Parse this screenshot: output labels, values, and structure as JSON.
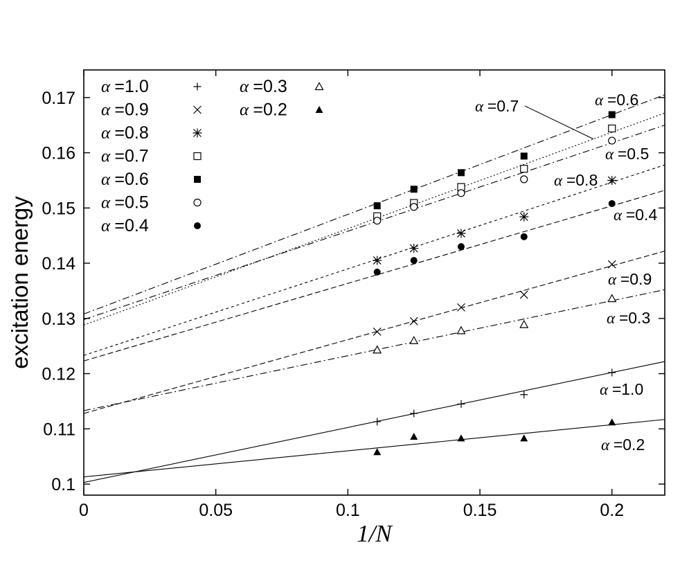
{
  "chart_data": {
    "type": "scatter",
    "xlabel": "1/N",
    "ylabel": "excitation energy",
    "xlim": [
      0,
      0.22
    ],
    "ylim": [
      0.098,
      0.175
    ],
    "x_ticks": [
      0,
      0.05,
      0.1,
      0.15,
      0.2
    ],
    "x_tick_labels": [
      "0",
      "0.05",
      "0.1",
      "0.15",
      "0.2"
    ],
    "y_ticks": [
      0.1,
      0.11,
      0.12,
      0.13,
      0.14,
      0.15,
      0.16,
      0.17
    ],
    "y_tick_labels": [
      "0.1",
      "0.11",
      "0.12",
      "0.13",
      "0.14",
      "0.15",
      "0.16",
      "0.17"
    ],
    "grid": false,
    "legend_position": "top-left",
    "x": [
      0.1111,
      0.125,
      0.1429,
      0.1667,
      0.2
    ],
    "series": [
      {
        "name": "α =1.0",
        "marker": "plus",
        "values": [
          0.1113,
          0.1128,
          0.1145,
          0.1162,
          0.1202
        ],
        "fit": [
          0.1003,
          0.1222
        ],
        "line_style": "solid",
        "label": "α =1.0"
      },
      {
        "name": "α =0.9",
        "marker": "cross",
        "values": [
          0.1276,
          0.1295,
          0.132,
          0.1343,
          0.1398
        ],
        "fit": [
          0.1128,
          0.1422
        ],
        "line_style": "dashed",
        "label": "α =0.9"
      },
      {
        "name": "α =0.8",
        "marker": "asterisk",
        "values": [
          0.1405,
          0.1427,
          0.1454,
          0.1484,
          0.155
        ],
        "fit": [
          0.1233,
          0.1578
        ],
        "line_style": "short-dashed",
        "label": "α =0.8"
      },
      {
        "name": "α =0.7",
        "marker": "open-square",
        "values": [
          0.1485,
          0.1509,
          0.1538,
          0.1571,
          0.1644
        ],
        "fit": [
          0.1288,
          0.1672
        ],
        "line_style": "dotted",
        "label": "α =0.7"
      },
      {
        "name": "α =0.6",
        "marker": "filled-square",
        "values": [
          0.1504,
          0.1534,
          0.1564,
          0.1594,
          0.1669
        ],
        "fit": [
          0.1308,
          0.1705
        ],
        "line_style": "dash-dot",
        "label": "α =0.6"
      },
      {
        "name": "α =0.5",
        "marker": "open-circle",
        "values": [
          0.1477,
          0.1502,
          0.1527,
          0.1552,
          0.1622
        ],
        "fit": [
          0.1298,
          0.165
        ],
        "line_style": "dash-dot",
        "label": "α =0.5"
      },
      {
        "name": "α =0.4",
        "marker": "filled-circle",
        "values": [
          0.1384,
          0.1405,
          0.143,
          0.1448,
          0.1508
        ],
        "fit": [
          0.1223,
          0.1532
        ],
        "line_style": "dashed",
        "label": "α =0.4"
      },
      {
        "name": "α =0.3",
        "marker": "open-triangle",
        "values": [
          0.1243,
          0.126,
          0.1278,
          0.1289,
          0.1336
        ],
        "fit": [
          0.1133,
          0.1352
        ],
        "line_style": "dash-dot",
        "label": "α =0.3"
      },
      {
        "name": "α =0.2",
        "marker": "filled-triangle",
        "values": [
          0.1058,
          0.1086,
          0.1083,
          0.1083,
          0.1112
        ],
        "fit": [
          0.1013,
          0.1117
        ],
        "line_style": "solid",
        "label": "α =0.2"
      }
    ]
  }
}
